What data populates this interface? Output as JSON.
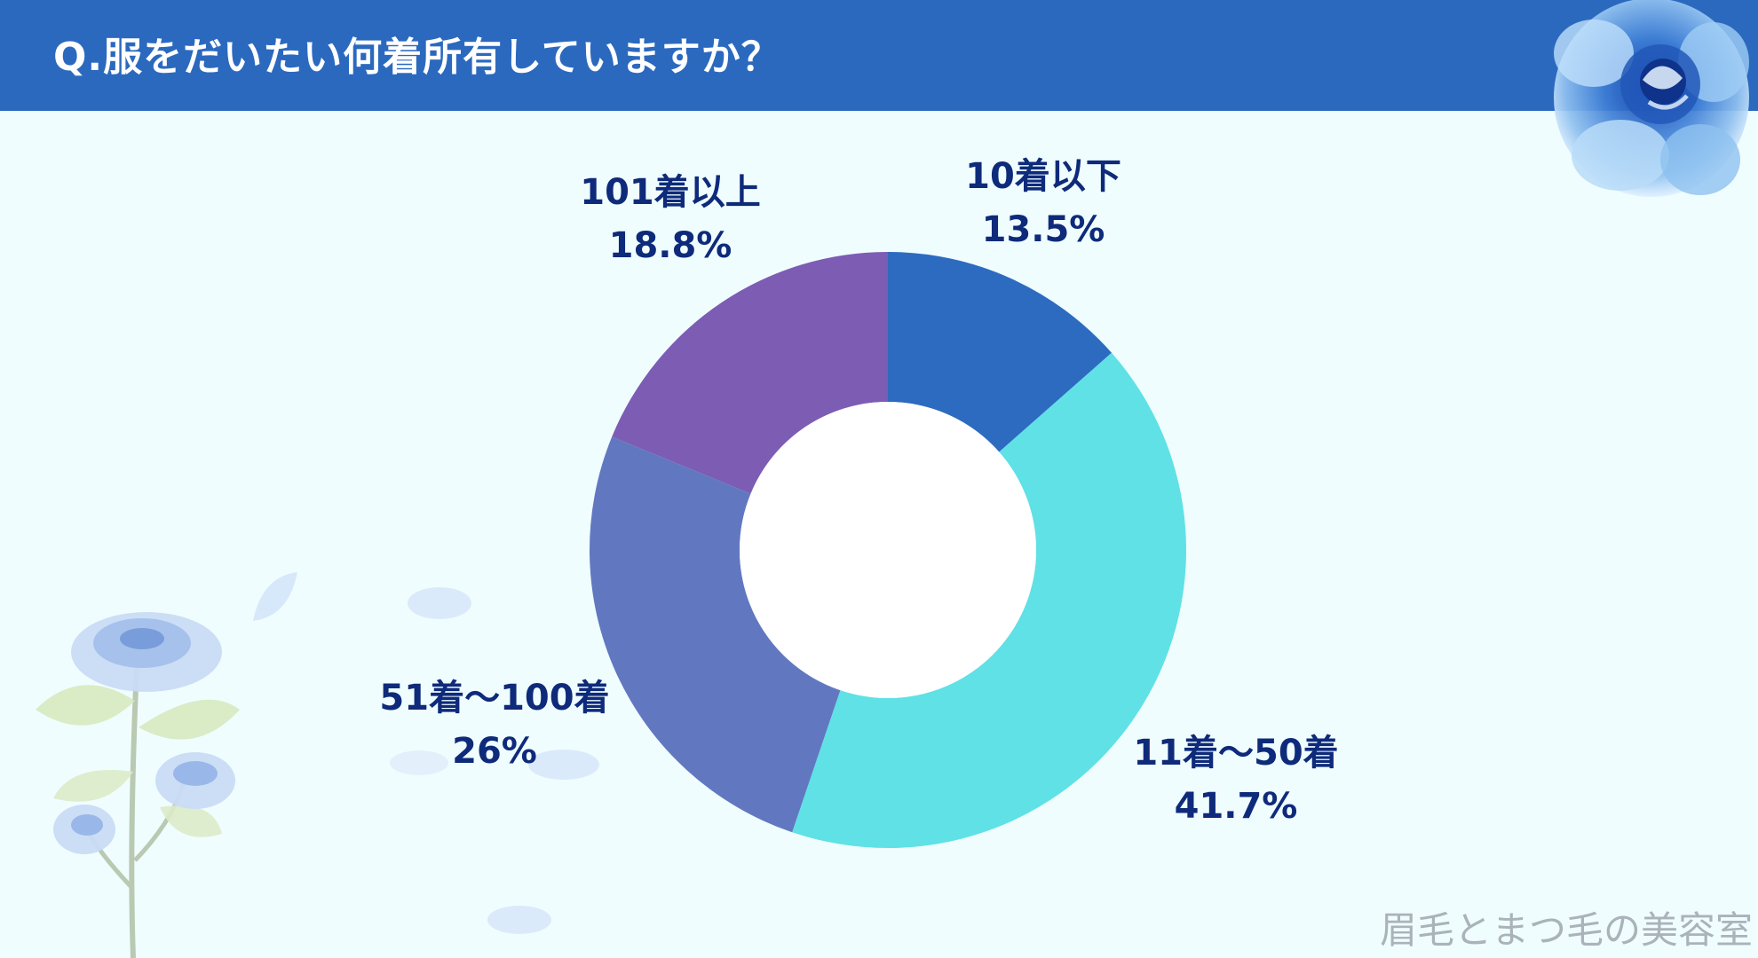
{
  "header": {
    "title": "Q.服をだいたい何着所有していますか？"
  },
  "watermark": {
    "text": "眉毛とまつ毛の美容室"
  },
  "decorations": {
    "top_right": "blue-rose-icon",
    "bottom_left": "blue-rose-stem-icon",
    "petals": "petal-icon"
  },
  "colors": {
    "header": "#2b69bf",
    "background": "#f0fdff",
    "label_text": "#0e2a7a"
  },
  "chart_data": {
    "type": "pie",
    "donut": true,
    "title": "",
    "unit": "%",
    "slices": [
      {
        "label": "10着以下",
        "value": 13.5,
        "value_label": "13.5%",
        "color": "#2d6bc0"
      },
      {
        "label": "11着～50着",
        "value": 41.7,
        "value_label": "41.7%",
        "color": "#5fe1e6"
      },
      {
        "label": "51着～100着",
        "value": 26,
        "value_label": "26%",
        "color": "#6178c0"
      },
      {
        "label": "101着以上",
        "value": 18.8,
        "value_label": "18.8%",
        "color": "#7d5cb4"
      }
    ]
  }
}
